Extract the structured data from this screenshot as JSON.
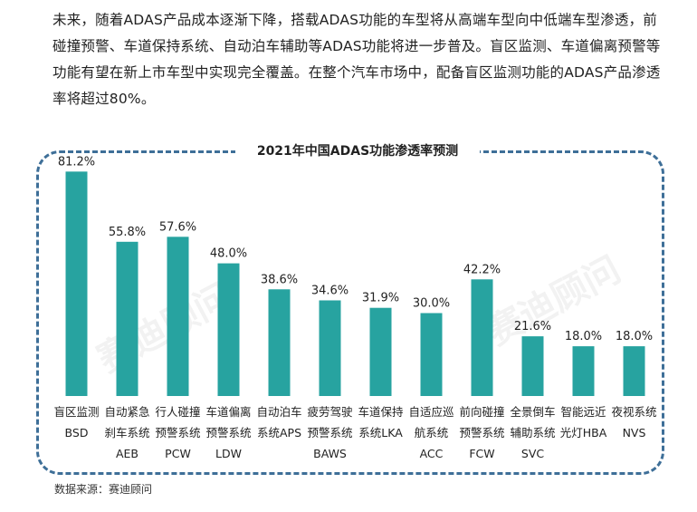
{
  "paragraph": "未来，随着ADAS产品成本逐渐下降，搭载ADAS功能的车型将从高端车型向中低端车型渗透，前碰撞预警、车道保持系统、自动泊车辅助等ADAS功能将进一步普及。盲区监测、车道偏离预警等功能有望在新上市车型中实现完全覆盖。在整个汽车市场中，配备盲区监测功能的ADAS产品渗透率将超过80%。",
  "source": "数据来源：赛迪顾问",
  "watermark": "赛迪顾问",
  "chart_data": {
    "type": "bar",
    "title": "2021年中国ADAS功能渗透率预测",
    "categories": [
      [
        "盲区监测",
        "BSD"
      ],
      [
        "自动紧急",
        "刹车系统",
        "AEB"
      ],
      [
        "行人碰撞",
        "预警系统",
        "PCW"
      ],
      [
        "车道偏离",
        "预警系统",
        "LDW"
      ],
      [
        "自动泊车",
        "系统APS"
      ],
      [
        "疲劳驾驶",
        "预警系统",
        "BAWS"
      ],
      [
        "车道保持",
        "系统LKA"
      ],
      [
        "自适应巡",
        "航系统",
        "ACC"
      ],
      [
        "前向碰撞",
        "预警系统",
        "FCW"
      ],
      [
        "全景倒车",
        "辅助系统",
        "SVC"
      ],
      [
        "智能远近",
        "光灯HBA"
      ],
      [
        "夜视系统",
        "NVS"
      ]
    ],
    "values": [
      81.2,
      55.8,
      57.6,
      48.0,
      38.6,
      34.6,
      31.9,
      30.0,
      42.2,
      21.6,
      18.0,
      18.0
    ],
    "value_labels": [
      "81.2%",
      "55.8%",
      "57.6%",
      "48.0%",
      "38.6%",
      "34.6%",
      "31.9%",
      "30.0%",
      "42.2%",
      "21.6%",
      "18.0%",
      "18.0%"
    ],
    "ylim": [
      0,
      100
    ],
    "bar_color": "#27a3a0",
    "frame_color": "#3e6f98"
  }
}
